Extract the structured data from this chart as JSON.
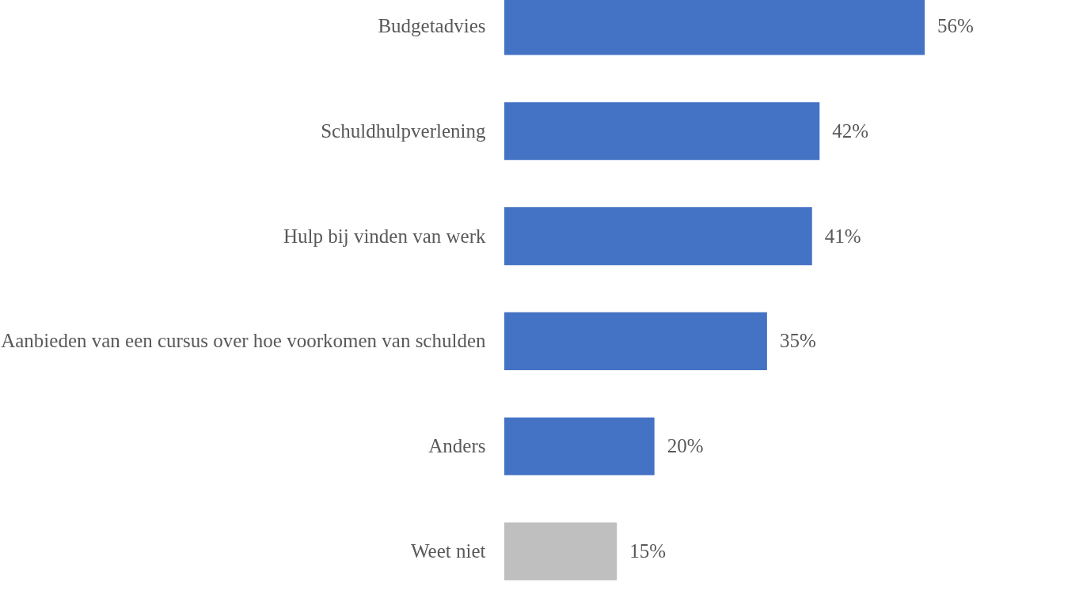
{
  "chart_data": {
    "type": "bar",
    "orientation": "horizontal",
    "categories": [
      "Budgetadvies",
      "Schuldhulpverlening",
      "Hulp bij vinden van werk",
      "Aanbieden van een cursus over hoe voorkomen van schulden",
      "Anders",
      "Weet niet"
    ],
    "values": [
      56,
      42,
      41,
      35,
      20,
      15
    ],
    "colors": [
      "#4472c4",
      "#4472c4",
      "#4472c4",
      "#4472c4",
      "#4472c4",
      "#bfbfbf"
    ],
    "value_labels": [
      "56%",
      "42%",
      "41%",
      "35%",
      "20%",
      "15%"
    ],
    "grid": false
  }
}
